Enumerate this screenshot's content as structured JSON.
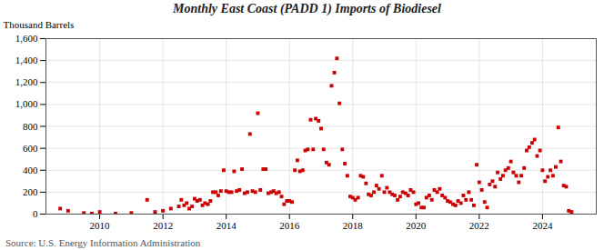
{
  "chart_data": {
    "type": "scatter",
    "title": "Monthly East Coast (PADD 1) Imports of Biodiesel",
    "ylabel": "Thousand Barrels",
    "source": "Source: U.S. Energy Information Administration",
    "color": "#cc0000",
    "marker": "square",
    "grid": true,
    "xlim": [
      2008.3,
      2025.7
    ],
    "xticks": [
      2010,
      2012,
      2014,
      2016,
      2018,
      2020,
      2022,
      2024
    ],
    "ylim": [
      0,
      1600
    ],
    "yticks": [
      0,
      200,
      400,
      600,
      800,
      {
        "value": 1000,
        "label": "1,000"
      },
      {
        "value": 1200,
        "label": "1,200"
      },
      {
        "value": 1400,
        "label": "1,400"
      },
      {
        "value": 1600,
        "label": "1,600"
      }
    ],
    "x": [
      2008.75,
      2009.0,
      2009.5,
      2009.75,
      2010.0,
      2010.5,
      2011.0,
      2011.5,
      2011.75,
      2012.0,
      2012.25,
      2012.5,
      2012.58,
      2012.67,
      2012.75,
      2012.83,
      2012.92,
      2013.0,
      2013.08,
      2013.17,
      2013.25,
      2013.33,
      2013.42,
      2013.5,
      2013.58,
      2013.67,
      2013.75,
      2013.83,
      2013.92,
      2014.0,
      2014.08,
      2014.17,
      2014.25,
      2014.33,
      2014.42,
      2014.5,
      2014.58,
      2014.67,
      2014.75,
      2014.83,
      2014.92,
      2015.0,
      2015.08,
      2015.17,
      2015.25,
      2015.33,
      2015.42,
      2015.5,
      2015.58,
      2015.67,
      2015.75,
      2015.83,
      2015.92,
      2016.0,
      2016.08,
      2016.17,
      2016.25,
      2016.33,
      2016.42,
      2016.5,
      2016.58,
      2016.67,
      2016.75,
      2016.83,
      2016.92,
      2017.0,
      2017.08,
      2017.17,
      2017.25,
      2017.33,
      2017.42,
      2017.5,
      2017.58,
      2017.67,
      2017.75,
      2017.83,
      2017.92,
      2018.0,
      2018.08,
      2018.17,
      2018.25,
      2018.33,
      2018.42,
      2018.5,
      2018.58,
      2018.67,
      2018.75,
      2018.83,
      2018.92,
      2019.0,
      2019.08,
      2019.17,
      2019.25,
      2019.33,
      2019.42,
      2019.5,
      2019.58,
      2019.67,
      2019.75,
      2019.83,
      2019.92,
      2020.0,
      2020.08,
      2020.17,
      2020.25,
      2020.33,
      2020.42,
      2020.5,
      2020.58,
      2020.67,
      2020.75,
      2020.83,
      2020.92,
      2021.0,
      2021.08,
      2021.17,
      2021.25,
      2021.33,
      2021.42,
      2021.5,
      2021.58,
      2021.67,
      2021.75,
      2021.83,
      2021.92,
      2022.0,
      2022.08,
      2022.17,
      2022.25,
      2022.33,
      2022.42,
      2022.5,
      2022.58,
      2022.67,
      2022.75,
      2022.83,
      2022.92,
      2023.0,
      2023.08,
      2023.17,
      2023.25,
      2023.33,
      2023.42,
      2023.5,
      2023.58,
      2023.67,
      2023.75,
      2023.83,
      2023.92,
      2024.0,
      2024.08,
      2024.17,
      2024.25,
      2024.33,
      2024.42,
      2024.5,
      2024.58,
      2024.67,
      2024.75,
      2024.83,
      2024.92
    ],
    "values": [
      50,
      30,
      10,
      5,
      20,
      5,
      10,
      130,
      20,
      30,
      50,
      70,
      130,
      80,
      100,
      50,
      70,
      140,
      120,
      130,
      80,
      100,
      90,
      120,
      200,
      200,
      170,
      210,
      400,
      210,
      200,
      200,
      390,
      210,
      220,
      410,
      190,
      200,
      730,
      210,
      200,
      920,
      220,
      410,
      410,
      190,
      200,
      210,
      190,
      200,
      160,
      90,
      120,
      120,
      110,
      400,
      490,
      390,
      400,
      580,
      590,
      860,
      590,
      870,
      850,
      780,
      590,
      470,
      450,
      1170,
      1290,
      1420,
      1010,
      590,
      460,
      350,
      160,
      150,
      130,
      150,
      350,
      340,
      280,
      180,
      170,
      200,
      260,
      230,
      350,
      200,
      240,
      200,
      180,
      170,
      130,
      160,
      200,
      190,
      170,
      220,
      200,
      90,
      100,
      60,
      60,
      150,
      170,
      130,
      220,
      200,
      230,
      170,
      150,
      120,
      110,
      90,
      80,
      120,
      100,
      170,
      130,
      200,
      130,
      80,
      450,
      290,
      220,
      110,
      60,
      270,
      300,
      250,
      380,
      320,
      350,
      400,
      420,
      480,
      380,
      350,
      290,
      350,
      420,
      580,
      610,
      650,
      680,
      530,
      580,
      400,
      300,
      340,
      400,
      350,
      430,
      790,
      480,
      260,
      250,
      30,
      20
    ]
  }
}
